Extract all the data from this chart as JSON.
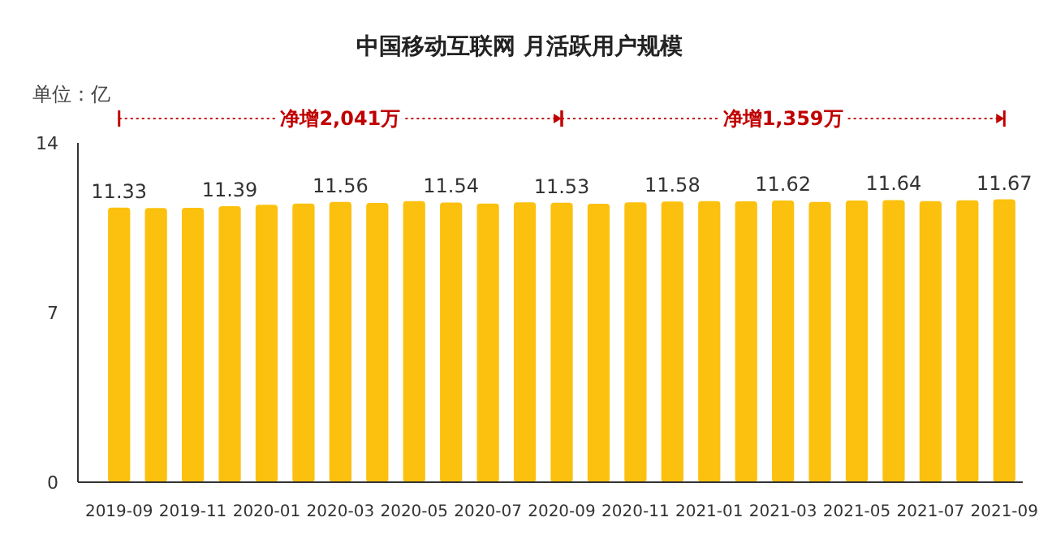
{
  "chart_data": {
    "type": "bar",
    "title": "中国移动互联网 月活跃用户规模",
    "ylabel": "单位：亿",
    "categories": [
      "2019-09",
      null,
      "2019-11",
      null,
      "2020-01",
      null,
      "2020-03",
      null,
      "2020-05",
      null,
      "2020-07",
      null,
      "2020-09",
      null,
      "2020-11",
      null,
      "2021-01",
      null,
      "2021-03",
      null,
      "2021-05",
      null,
      "2021-07",
      null,
      "2021-09"
    ],
    "values": [
      11.33,
      11.31,
      11.32,
      11.39,
      11.45,
      11.5,
      11.56,
      11.52,
      11.6,
      11.54,
      11.5,
      11.55,
      11.53,
      11.49,
      11.55,
      11.58,
      11.6,
      11.59,
      11.62,
      11.56,
      11.62,
      11.64,
      11.6,
      11.63,
      11.67
    ],
    "value_labels": [
      "11.33",
      null,
      null,
      "11.39",
      null,
      null,
      "11.56",
      null,
      null,
      "11.54",
      null,
      null,
      "11.53",
      null,
      null,
      "11.58",
      null,
      null,
      "11.62",
      null,
      null,
      "11.64",
      null,
      null,
      "11.67"
    ],
    "color": "#fcc10f",
    "ylim": [
      0,
      14
    ],
    "yticks": [
      0,
      7,
      14
    ],
    "annotations": [
      "净增2,041万",
      "净增1,359万"
    ]
  }
}
